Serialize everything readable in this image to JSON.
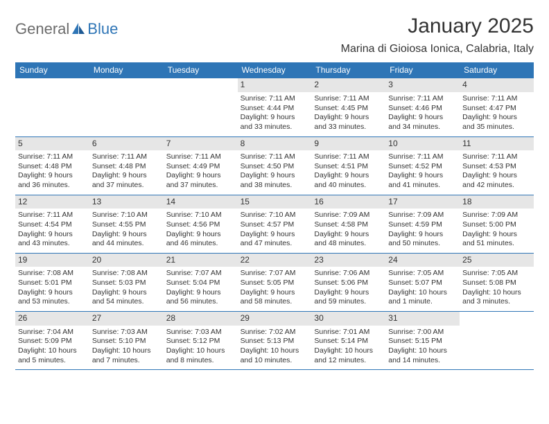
{
  "logo": {
    "text1": "General",
    "text2": "Blue"
  },
  "title": "January 2025",
  "location": "Marina di Gioiosa Ionica, Calabria, Italy",
  "colors": {
    "header_bg": "#2e75b6",
    "header_text": "#ffffff",
    "daynum_bg": "#e6e6e6",
    "text": "#333333",
    "rule": "#2e75b6",
    "page_bg": "#ffffff"
  },
  "daynames": [
    "Sunday",
    "Monday",
    "Tuesday",
    "Wednesday",
    "Thursday",
    "Friday",
    "Saturday"
  ],
  "weeks": [
    [
      null,
      null,
      null,
      {
        "n": "1",
        "sr": "Sunrise: 7:11 AM",
        "ss": "Sunset: 4:44 PM",
        "d1": "Daylight: 9 hours",
        "d2": "and 33 minutes."
      },
      {
        "n": "2",
        "sr": "Sunrise: 7:11 AM",
        "ss": "Sunset: 4:45 PM",
        "d1": "Daylight: 9 hours",
        "d2": "and 33 minutes."
      },
      {
        "n": "3",
        "sr": "Sunrise: 7:11 AM",
        "ss": "Sunset: 4:46 PM",
        "d1": "Daylight: 9 hours",
        "d2": "and 34 minutes."
      },
      {
        "n": "4",
        "sr": "Sunrise: 7:11 AM",
        "ss": "Sunset: 4:47 PM",
        "d1": "Daylight: 9 hours",
        "d2": "and 35 minutes."
      }
    ],
    [
      {
        "n": "5",
        "sr": "Sunrise: 7:11 AM",
        "ss": "Sunset: 4:48 PM",
        "d1": "Daylight: 9 hours",
        "d2": "and 36 minutes."
      },
      {
        "n": "6",
        "sr": "Sunrise: 7:11 AM",
        "ss": "Sunset: 4:48 PM",
        "d1": "Daylight: 9 hours",
        "d2": "and 37 minutes."
      },
      {
        "n": "7",
        "sr": "Sunrise: 7:11 AM",
        "ss": "Sunset: 4:49 PM",
        "d1": "Daylight: 9 hours",
        "d2": "and 37 minutes."
      },
      {
        "n": "8",
        "sr": "Sunrise: 7:11 AM",
        "ss": "Sunset: 4:50 PM",
        "d1": "Daylight: 9 hours",
        "d2": "and 38 minutes."
      },
      {
        "n": "9",
        "sr": "Sunrise: 7:11 AM",
        "ss": "Sunset: 4:51 PM",
        "d1": "Daylight: 9 hours",
        "d2": "and 40 minutes."
      },
      {
        "n": "10",
        "sr": "Sunrise: 7:11 AM",
        "ss": "Sunset: 4:52 PM",
        "d1": "Daylight: 9 hours",
        "d2": "and 41 minutes."
      },
      {
        "n": "11",
        "sr": "Sunrise: 7:11 AM",
        "ss": "Sunset: 4:53 PM",
        "d1": "Daylight: 9 hours",
        "d2": "and 42 minutes."
      }
    ],
    [
      {
        "n": "12",
        "sr": "Sunrise: 7:11 AM",
        "ss": "Sunset: 4:54 PM",
        "d1": "Daylight: 9 hours",
        "d2": "and 43 minutes."
      },
      {
        "n": "13",
        "sr": "Sunrise: 7:10 AM",
        "ss": "Sunset: 4:55 PM",
        "d1": "Daylight: 9 hours",
        "d2": "and 44 minutes."
      },
      {
        "n": "14",
        "sr": "Sunrise: 7:10 AM",
        "ss": "Sunset: 4:56 PM",
        "d1": "Daylight: 9 hours",
        "d2": "and 46 minutes."
      },
      {
        "n": "15",
        "sr": "Sunrise: 7:10 AM",
        "ss": "Sunset: 4:57 PM",
        "d1": "Daylight: 9 hours",
        "d2": "and 47 minutes."
      },
      {
        "n": "16",
        "sr": "Sunrise: 7:09 AM",
        "ss": "Sunset: 4:58 PM",
        "d1": "Daylight: 9 hours",
        "d2": "and 48 minutes."
      },
      {
        "n": "17",
        "sr": "Sunrise: 7:09 AM",
        "ss": "Sunset: 4:59 PM",
        "d1": "Daylight: 9 hours",
        "d2": "and 50 minutes."
      },
      {
        "n": "18",
        "sr": "Sunrise: 7:09 AM",
        "ss": "Sunset: 5:00 PM",
        "d1": "Daylight: 9 hours",
        "d2": "and 51 minutes."
      }
    ],
    [
      {
        "n": "19",
        "sr": "Sunrise: 7:08 AM",
        "ss": "Sunset: 5:01 PM",
        "d1": "Daylight: 9 hours",
        "d2": "and 53 minutes."
      },
      {
        "n": "20",
        "sr": "Sunrise: 7:08 AM",
        "ss": "Sunset: 5:03 PM",
        "d1": "Daylight: 9 hours",
        "d2": "and 54 minutes."
      },
      {
        "n": "21",
        "sr": "Sunrise: 7:07 AM",
        "ss": "Sunset: 5:04 PM",
        "d1": "Daylight: 9 hours",
        "d2": "and 56 minutes."
      },
      {
        "n": "22",
        "sr": "Sunrise: 7:07 AM",
        "ss": "Sunset: 5:05 PM",
        "d1": "Daylight: 9 hours",
        "d2": "and 58 minutes."
      },
      {
        "n": "23",
        "sr": "Sunrise: 7:06 AM",
        "ss": "Sunset: 5:06 PM",
        "d1": "Daylight: 9 hours",
        "d2": "and 59 minutes."
      },
      {
        "n": "24",
        "sr": "Sunrise: 7:05 AM",
        "ss": "Sunset: 5:07 PM",
        "d1": "Daylight: 10 hours",
        "d2": "and 1 minute."
      },
      {
        "n": "25",
        "sr": "Sunrise: 7:05 AM",
        "ss": "Sunset: 5:08 PM",
        "d1": "Daylight: 10 hours",
        "d2": "and 3 minutes."
      }
    ],
    [
      {
        "n": "26",
        "sr": "Sunrise: 7:04 AM",
        "ss": "Sunset: 5:09 PM",
        "d1": "Daylight: 10 hours",
        "d2": "and 5 minutes."
      },
      {
        "n": "27",
        "sr": "Sunrise: 7:03 AM",
        "ss": "Sunset: 5:10 PM",
        "d1": "Daylight: 10 hours",
        "d2": "and 7 minutes."
      },
      {
        "n": "28",
        "sr": "Sunrise: 7:03 AM",
        "ss": "Sunset: 5:12 PM",
        "d1": "Daylight: 10 hours",
        "d2": "and 8 minutes."
      },
      {
        "n": "29",
        "sr": "Sunrise: 7:02 AM",
        "ss": "Sunset: 5:13 PM",
        "d1": "Daylight: 10 hours",
        "d2": "and 10 minutes."
      },
      {
        "n": "30",
        "sr": "Sunrise: 7:01 AM",
        "ss": "Sunset: 5:14 PM",
        "d1": "Daylight: 10 hours",
        "d2": "and 12 minutes."
      },
      {
        "n": "31",
        "sr": "Sunrise: 7:00 AM",
        "ss": "Sunset: 5:15 PM",
        "d1": "Daylight: 10 hours",
        "d2": "and 14 minutes."
      },
      null
    ]
  ]
}
